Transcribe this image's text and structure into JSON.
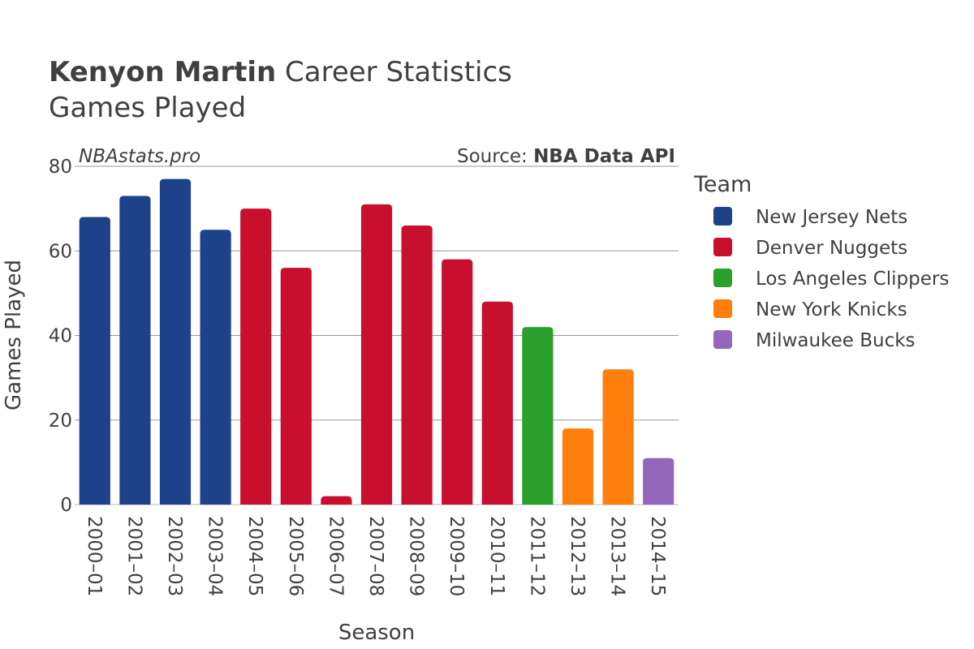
{
  "header": {
    "title_bold": "Kenyon Martin",
    "title_rest": " Career Statistics",
    "subtitle": "Games Played"
  },
  "credits": {
    "site": "NBAstats.pro",
    "source_prefix": "Source: ",
    "source_name": "NBA Data API"
  },
  "legend": {
    "title": "Team",
    "items": [
      {
        "label": "New Jersey Nets",
        "color": "#1d428a"
      },
      {
        "label": "Denver Nuggets",
        "color": "#c8102e"
      },
      {
        "label": "Los Angeles Clippers",
        "color": "#2ca02c"
      },
      {
        "label": "New York Knicks",
        "color": "#ff7f0e"
      },
      {
        "label": "Milwaukee Bucks",
        "color": "#9467bd"
      }
    ]
  },
  "chart_data": {
    "type": "bar",
    "title": "Kenyon Martin Career Statistics",
    "subtitle": "Games Played",
    "xlabel": "Season",
    "ylabel": "Games Played",
    "ylim": [
      0,
      80
    ],
    "yticks": [
      0,
      20,
      40,
      60,
      80
    ],
    "grid": true,
    "legend_position": "right",
    "categories": [
      "2000–01",
      "2001–02",
      "2002–03",
      "2003–04",
      "2004–05",
      "2005–06",
      "2006–07",
      "2007–08",
      "2008–09",
      "2009–10",
      "2010–11",
      "2011–12",
      "2012–13",
      "2013–14",
      "2014–15"
    ],
    "values": [
      68,
      73,
      77,
      65,
      70,
      56,
      2,
      71,
      66,
      58,
      48,
      42,
      18,
      32,
      11
    ],
    "teams": [
      "New Jersey Nets",
      "New Jersey Nets",
      "New Jersey Nets",
      "New Jersey Nets",
      "Denver Nuggets",
      "Denver Nuggets",
      "Denver Nuggets",
      "Denver Nuggets",
      "Denver Nuggets",
      "Denver Nuggets",
      "Denver Nuggets",
      "Los Angeles Clippers",
      "New York Knicks",
      "New York Knicks",
      "Milwaukee Bucks"
    ]
  }
}
